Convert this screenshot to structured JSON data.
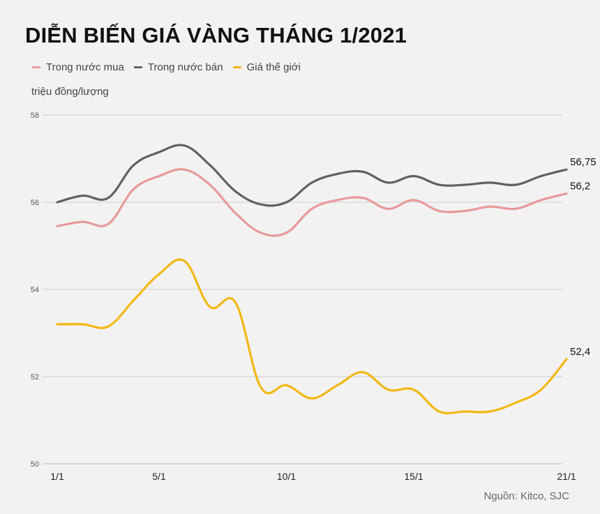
{
  "title": "DIỄN BIẾN GIÁ VÀNG THÁNG 1/2021",
  "unit_label": "triệu đồng/lượng",
  "source": "Nguồn: Kitco, SJC",
  "chart_data": {
    "type": "line",
    "title": "DIỄN BIẾN GIÁ VÀNG THÁNG 1/2021",
    "ylabel": "triệu đồng/lượng",
    "xlabel": "",
    "ylim": [
      50,
      58
    ],
    "yticks": [
      50,
      52,
      54,
      56,
      58
    ],
    "grid": true,
    "legend_position": "top-left",
    "x": [
      "1/1",
      "2/1",
      "3/1",
      "4/1",
      "5/1",
      "6/1",
      "7/1",
      "8/1",
      "9/1",
      "10/1",
      "11/1",
      "12/1",
      "13/1",
      "14/1",
      "15/1",
      "16/1",
      "17/1",
      "18/1",
      "19/1",
      "20/1",
      "21/1"
    ],
    "xtick_labels": [
      "1/1",
      "5/1",
      "10/1",
      "15/1",
      "21/1"
    ],
    "series": [
      {
        "name": "Trong nước mua",
        "color": "#e8999a",
        "values": [
          55.45,
          55.55,
          55.5,
          56.3,
          56.6,
          56.75,
          56.4,
          55.75,
          55.3,
          55.3,
          55.85,
          56.05,
          56.1,
          55.85,
          56.05,
          55.8,
          55.8,
          55.9,
          55.85,
          56.05,
          56.2
        ],
        "end_label": "56,2"
      },
      {
        "name": "Trong nước bán",
        "color": "#606060",
        "values": [
          56.0,
          56.15,
          56.1,
          56.85,
          57.15,
          57.3,
          56.85,
          56.25,
          55.95,
          56.0,
          56.45,
          56.65,
          56.7,
          56.45,
          56.6,
          56.4,
          56.4,
          56.45,
          56.4,
          56.6,
          56.75
        ],
        "end_label": "56,75"
      },
      {
        "name": "Giá thế giới",
        "color": "#f1b814",
        "values": [
          53.2,
          53.2,
          53.15,
          53.75,
          54.35,
          54.65,
          53.6,
          53.7,
          51.75,
          51.8,
          51.5,
          51.8,
          52.1,
          51.7,
          51.7,
          51.2,
          51.2,
          51.2,
          51.4,
          51.7,
          52.4
        ],
        "end_label": "52,4"
      }
    ]
  }
}
